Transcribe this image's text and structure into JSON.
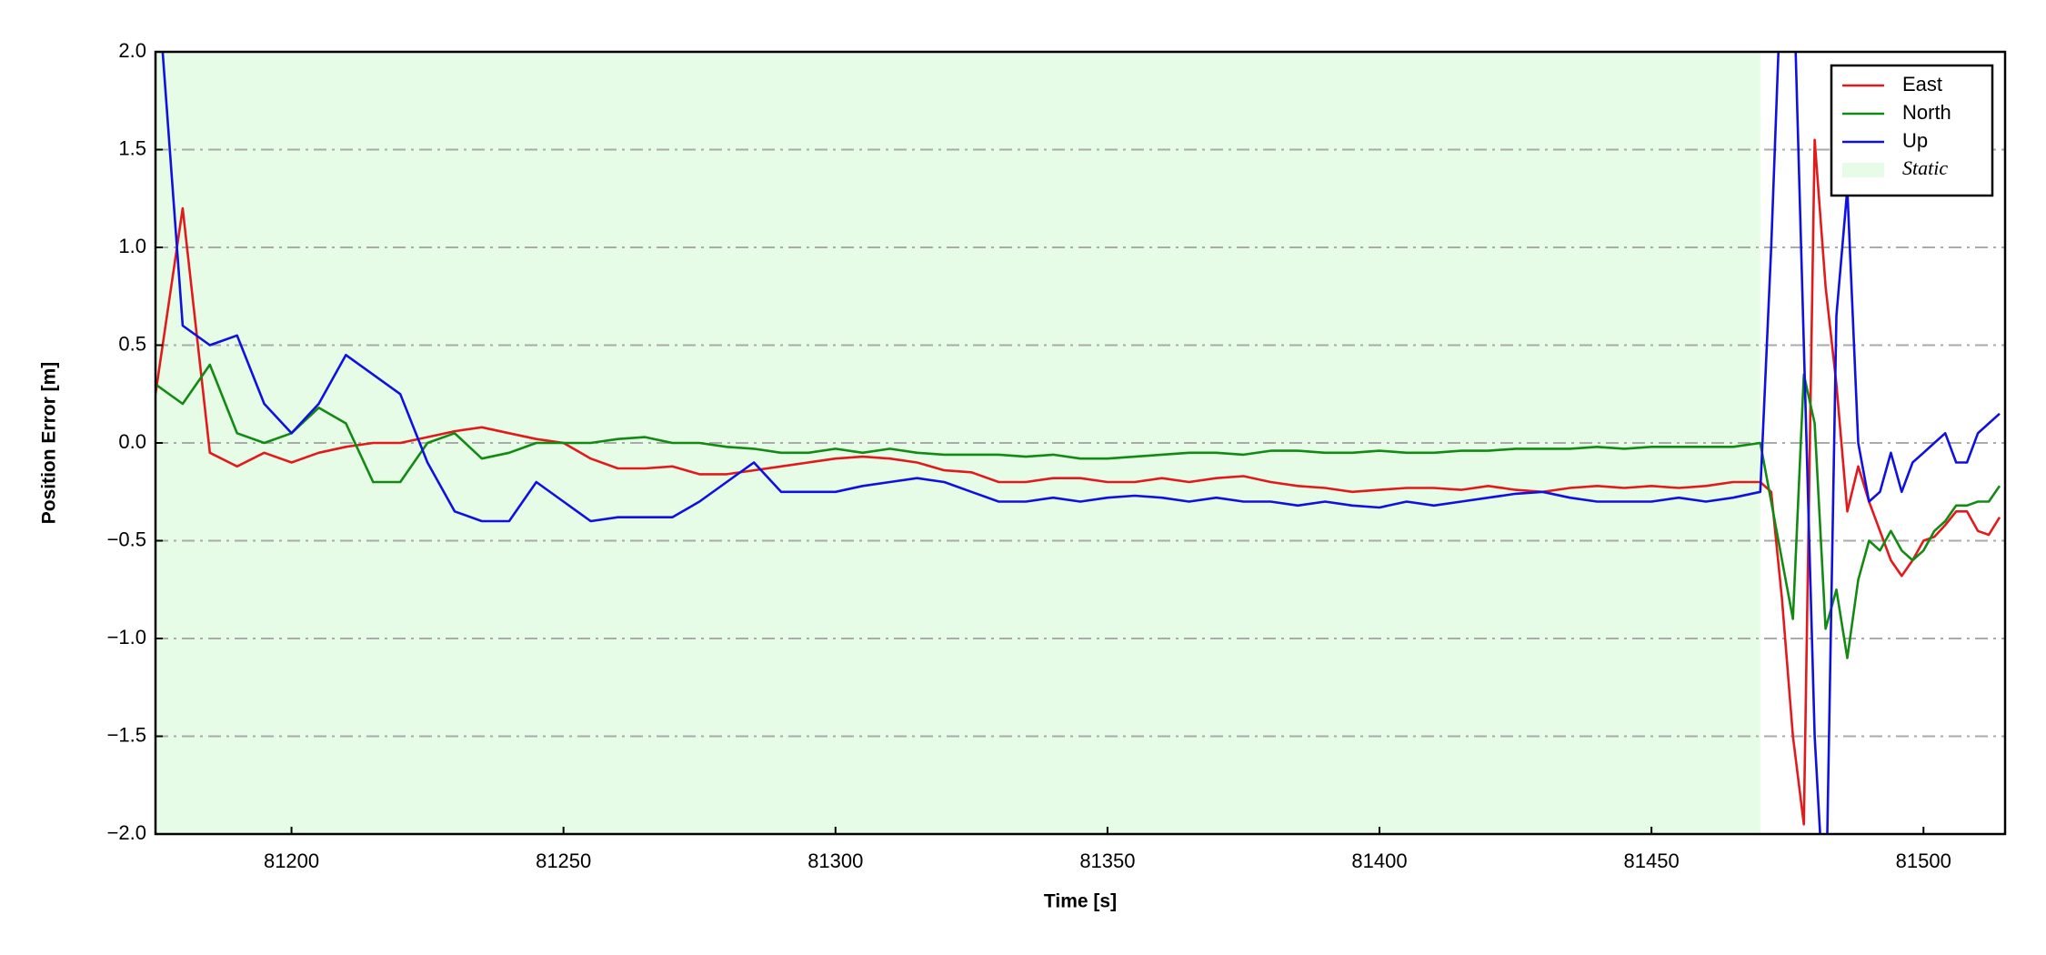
{
  "chart_data": {
    "type": "line",
    "xlabel": "Time [s]",
    "ylabel": "Position Error [m]",
    "xlim": [
      81175,
      81515
    ],
    "ylim": [
      -2,
      2
    ],
    "xticks": [
      81200,
      81250,
      81300,
      81350,
      81400,
      81450,
      81500
    ],
    "yticks": [
      {
        "value": -2,
        "label": "−2.0"
      },
      {
        "value": -1.5,
        "label": "−1.5"
      },
      {
        "value": -1,
        "label": "−1.0"
      },
      {
        "value": -0.5,
        "label": "−0.5"
      },
      {
        "value": 0,
        "label": "0.0"
      },
      0.5,
      {
        "value": 1,
        "label": "1.0"
      },
      1.5,
      {
        "value": 2,
        "label": "2.0"
      }
    ],
    "grid": true,
    "legend": "upper right",
    "span": {
      "name": "Static",
      "start": 81175,
      "end": 81470,
      "color": "#e6fce6"
    },
    "x": [
      81175,
      81180,
      81185,
      81190,
      81195,
      81200,
      81205,
      81210,
      81215,
      81220,
      81225,
      81230,
      81235,
      81240,
      81245,
      81250,
      81255,
      81260,
      81265,
      81270,
      81275,
      81280,
      81285,
      81290,
      81295,
      81300,
      81305,
      81310,
      81315,
      81320,
      81325,
      81330,
      81335,
      81340,
      81345,
      81350,
      81355,
      81360,
      81365,
      81370,
      81375,
      81380,
      81385,
      81390,
      81395,
      81400,
      81405,
      81410,
      81415,
      81420,
      81425,
      81430,
      81435,
      81440,
      81445,
      81450,
      81455,
      81460,
      81465,
      81470,
      81472,
      81474,
      81476,
      81478,
      81480,
      81482,
      81484,
      81486,
      81488,
      81490,
      81492,
      81494,
      81496,
      81498,
      81500,
      81502,
      81504,
      81506,
      81508,
      81510,
      81512,
      81514
    ],
    "series": [
      {
        "name": "East",
        "color": "#e31a1c",
        "values": [
          0.25,
          1.2,
          -0.05,
          -0.12,
          -0.05,
          -0.1,
          -0.05,
          -0.02,
          0.0,
          0.0,
          0.03,
          0.06,
          0.08,
          0.05,
          0.02,
          0.0,
          -0.08,
          -0.13,
          -0.13,
          -0.12,
          -0.16,
          -0.16,
          -0.14,
          -0.12,
          -0.1,
          -0.08,
          -0.07,
          -0.08,
          -0.1,
          -0.14,
          -0.15,
          -0.2,
          -0.2,
          -0.18,
          -0.18,
          -0.2,
          -0.2,
          -0.18,
          -0.2,
          -0.18,
          -0.17,
          -0.2,
          -0.22,
          -0.23,
          -0.25,
          -0.24,
          -0.23,
          -0.23,
          -0.24,
          -0.22,
          -0.24,
          -0.25,
          -0.23,
          -0.22,
          -0.23,
          -0.22,
          -0.23,
          -0.22,
          -0.2,
          -0.2,
          -0.25,
          -0.8,
          -1.5,
          -1.95,
          1.55,
          0.8,
          0.3,
          -0.35,
          -0.12,
          -0.3,
          -0.45,
          -0.6,
          -0.68,
          -0.6,
          -0.5,
          -0.48,
          -0.42,
          -0.35,
          -0.35,
          -0.45,
          -0.47,
          -0.38
        ]
      },
      {
        "name": "North",
        "color": "#138a13",
        "values": [
          0.3,
          0.2,
          0.4,
          0.05,
          0.0,
          0.05,
          0.18,
          0.1,
          -0.2,
          -0.2,
          0.0,
          0.05,
          -0.08,
          -0.05,
          0.0,
          0.0,
          0.0,
          0.02,
          0.03,
          0.0,
          0.0,
          -0.02,
          -0.03,
          -0.05,
          -0.05,
          -0.03,
          -0.05,
          -0.03,
          -0.05,
          -0.06,
          -0.06,
          -0.06,
          -0.07,
          -0.06,
          -0.08,
          -0.08,
          -0.07,
          -0.06,
          -0.05,
          -0.05,
          -0.06,
          -0.04,
          -0.04,
          -0.05,
          -0.05,
          -0.04,
          -0.05,
          -0.05,
          -0.04,
          -0.04,
          -0.03,
          -0.03,
          -0.03,
          -0.02,
          -0.03,
          -0.02,
          -0.02,
          -0.02,
          -0.02,
          0.0,
          -0.3,
          -0.6,
          -0.9,
          0.35,
          0.1,
          -0.95,
          -0.75,
          -1.1,
          -0.7,
          -0.5,
          -0.55,
          -0.45,
          -0.55,
          -0.6,
          -0.55,
          -0.45,
          -0.4,
          -0.32,
          -0.32,
          -0.3,
          -0.3,
          -0.22
        ]
      },
      {
        "name": "Up",
        "color": "#1010e0",
        "values": [
          2.5,
          0.6,
          0.5,
          0.55,
          0.2,
          0.05,
          0.2,
          0.45,
          0.35,
          0.25,
          -0.1,
          -0.35,
          -0.4,
          -0.4,
          -0.2,
          -0.3,
          -0.4,
          -0.38,
          -0.38,
          -0.38,
          -0.3,
          -0.2,
          -0.1,
          -0.25,
          -0.25,
          -0.25,
          -0.22,
          -0.2,
          -0.18,
          -0.2,
          -0.25,
          -0.3,
          -0.3,
          -0.28,
          -0.3,
          -0.28,
          -0.27,
          -0.28,
          -0.3,
          -0.28,
          -0.3,
          -0.3,
          -0.32,
          -0.3,
          -0.32,
          -0.33,
          -0.3,
          -0.32,
          -0.3,
          -0.28,
          -0.26,
          -0.25,
          -0.28,
          -0.3,
          -0.3,
          -0.3,
          -0.28,
          -0.3,
          -0.28,
          -0.25,
          1.0,
          2.5,
          2.5,
          0.5,
          -1.5,
          -2.5,
          0.65,
          1.3,
          0.0,
          -0.3,
          -0.25,
          -0.05,
          -0.25,
          -0.1,
          -0.05,
          0.0,
          0.05,
          -0.1,
          -0.1,
          0.05,
          0.1,
          0.15
        ]
      }
    ]
  }
}
